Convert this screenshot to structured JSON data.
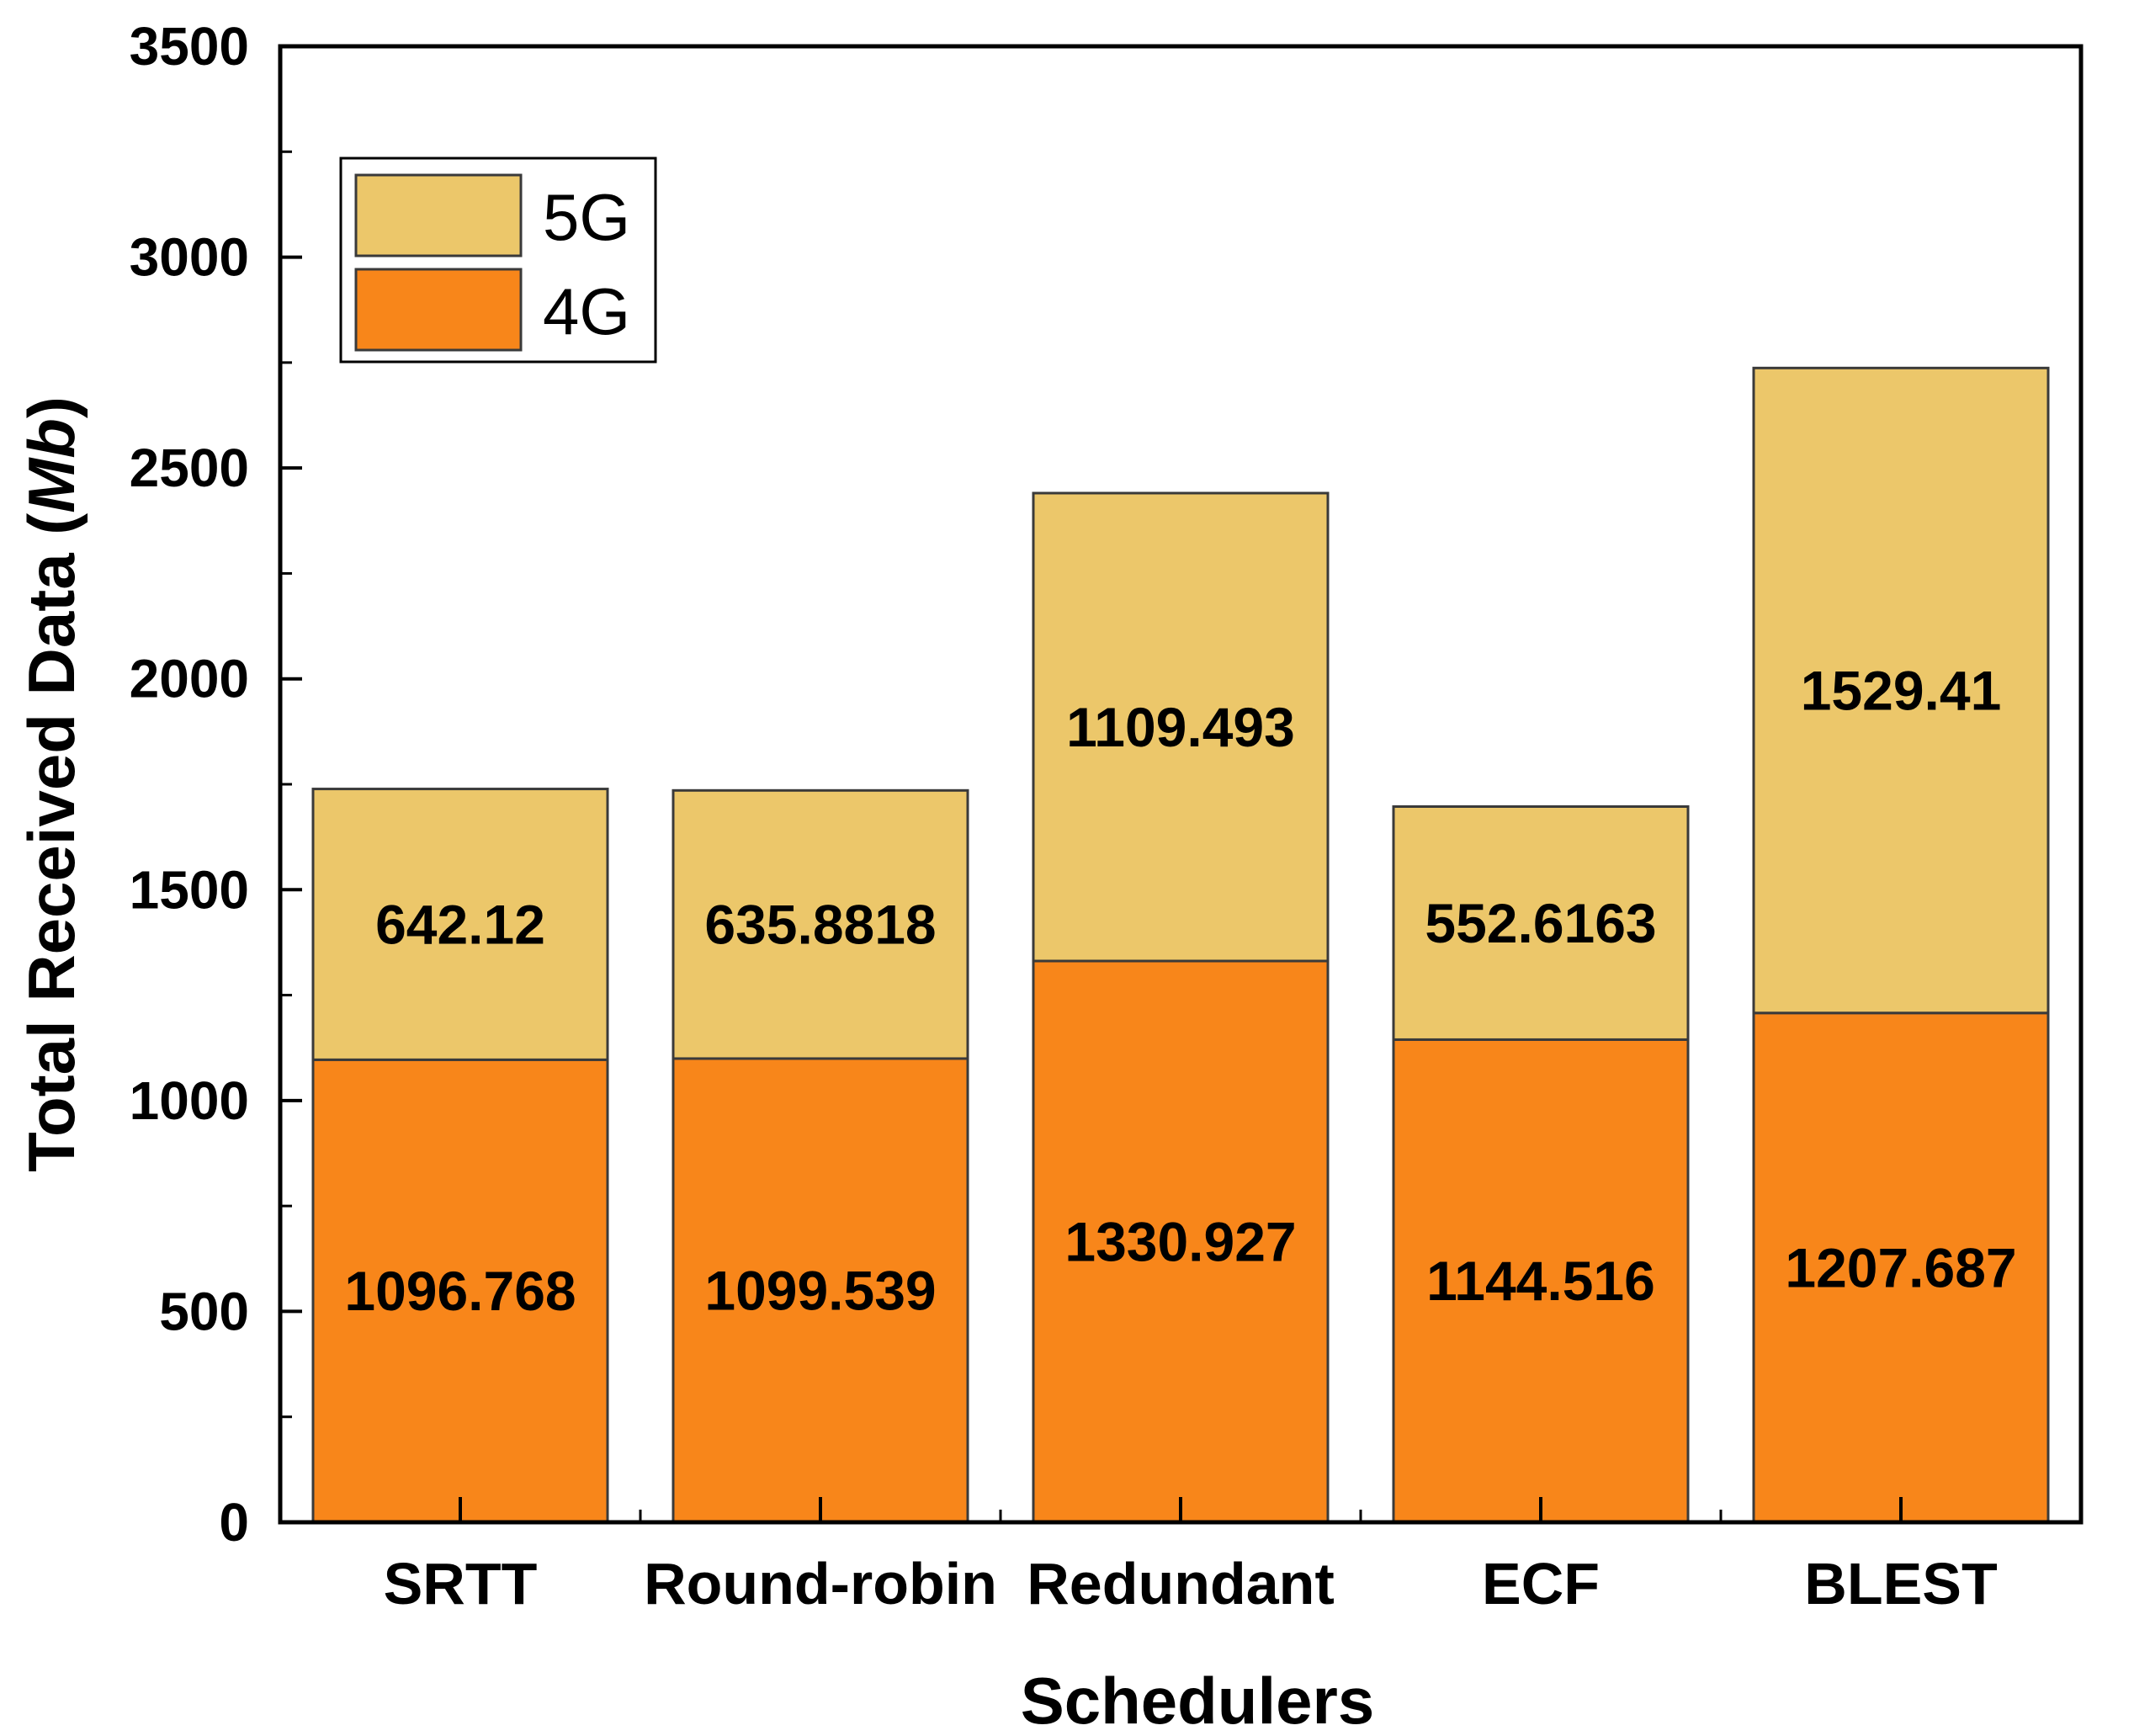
{
  "chart_data": {
    "type": "stacked-bar",
    "title": "",
    "xlabel": "Schedulers",
    "ylabel": {
      "main": "Total Received Data",
      "unit": "Mb"
    },
    "ylim": [
      0,
      3500
    ],
    "yticks": [
      0,
      500,
      1000,
      1500,
      2000,
      2500,
      3000,
      3500
    ],
    "categories": [
      "SRTT",
      "Round-robin",
      "Redundant",
      "ECF",
      "BLEST"
    ],
    "series": [
      {
        "name": "4G",
        "color": "#f8861a",
        "values": [
          1096.768,
          1099.539,
          1330.927,
          1144.516,
          1207.687
        ],
        "labels": [
          "1096.768",
          "1099.539",
          "1330.927",
          "1144.516",
          "1207.687"
        ]
      },
      {
        "name": "5G",
        "color": "#ecc76a",
        "values": [
          642.12,
          635.8818,
          1109.493,
          552.6163,
          1529.41
        ],
        "labels": [
          "642.12",
          "635.8818",
          "1109.493",
          "552.6163",
          "1529.41"
        ]
      }
    ],
    "legend": {
      "position": "top-left",
      "order": [
        "5G",
        "4G"
      ]
    },
    "grid": false
  }
}
